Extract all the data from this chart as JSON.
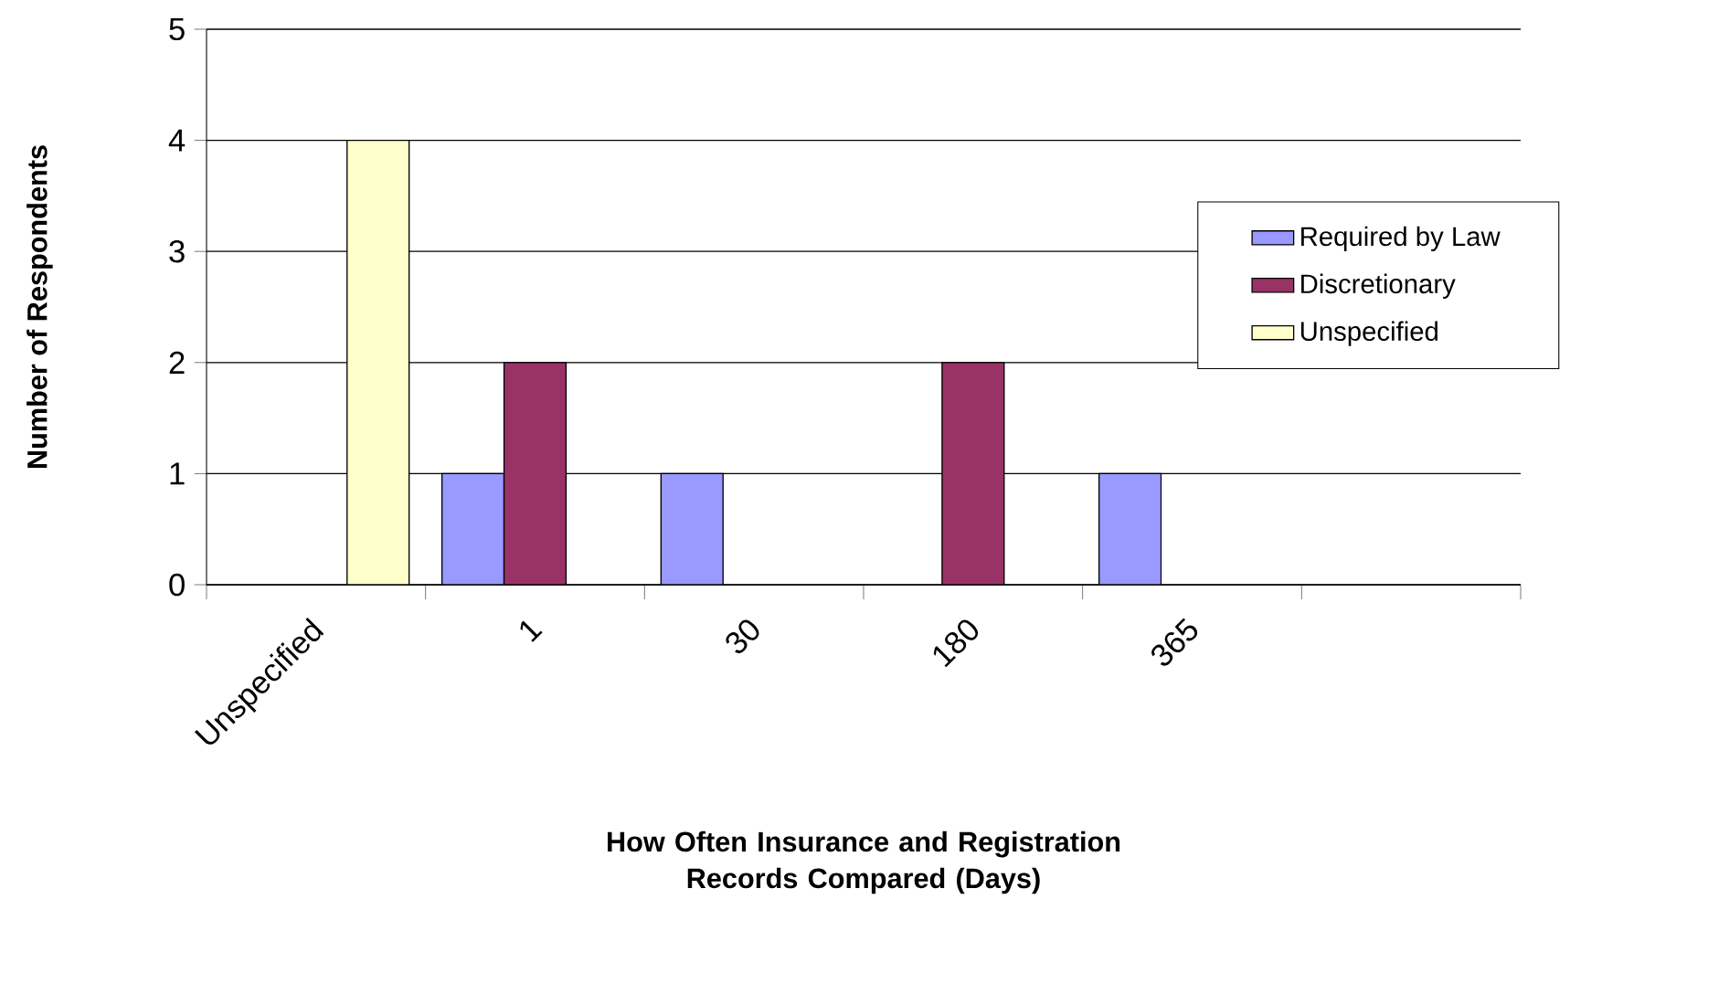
{
  "chart_data": {
    "type": "bar",
    "xlabel": "How Often Insurance and Registration Records Compared (Days)",
    "ylabel": "Number of Respondents",
    "categories": [
      "Unspecified",
      "1",
      "30",
      "180",
      "365",
      null
    ],
    "series": [
      {
        "name": "Required by Law",
        "color": "#9999ff",
        "values": [
          null,
          1,
          1,
          null,
          1,
          null
        ]
      },
      {
        "name": "Discretionary",
        "color": "#993366",
        "values": [
          null,
          2,
          null,
          2,
          null,
          null
        ]
      },
      {
        "name": "Unspecified",
        "color": "#ffffcc",
        "values": [
          4,
          null,
          null,
          null,
          null,
          null
        ]
      }
    ],
    "ylim": [
      0,
      5
    ],
    "yticks": [
      0,
      1,
      2,
      3,
      4,
      5
    ],
    "grid": "y",
    "legend": "right"
  }
}
